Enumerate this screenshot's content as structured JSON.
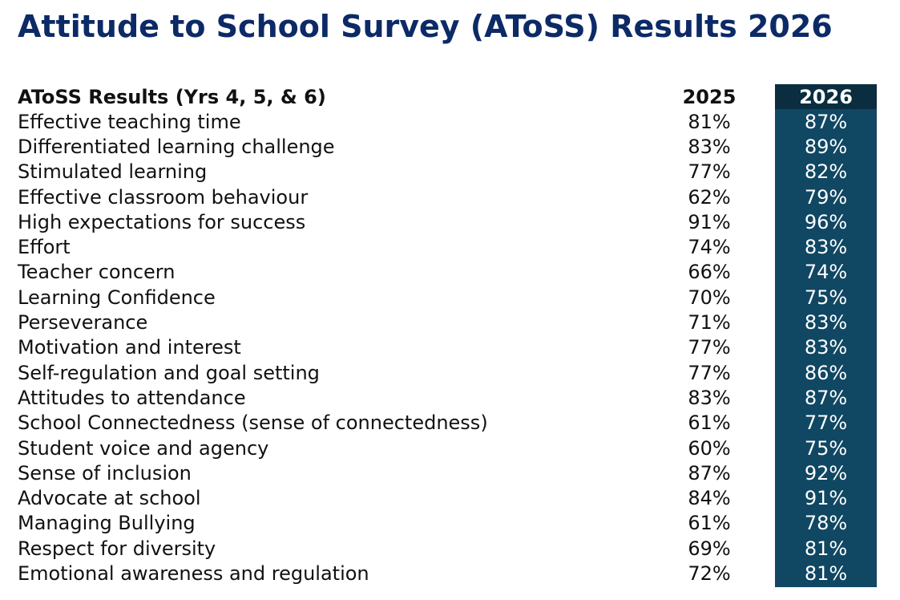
{
  "title": "Attitude to School Survey (AToSS) Results 2026",
  "colors": {
    "title": "#0c2a66",
    "highlight_column": "#104763",
    "highlight_header": "#0a2d40"
  },
  "table": {
    "header": {
      "label": "AToSS Results (Yrs 4, 5, & 6)",
      "col_2025": "2025",
      "col_2026": "2026"
    },
    "rows": [
      {
        "label": "Effective teaching time",
        "y2025": "81%",
        "y2026": "87%"
      },
      {
        "label": "Differentiated learning challenge",
        "y2025": "83%",
        "y2026": "89%"
      },
      {
        "label": "Stimulated learning",
        "y2025": "77%",
        "y2026": "82%"
      },
      {
        "label": "Effective classroom behaviour",
        "y2025": "62%",
        "y2026": "79%"
      },
      {
        "label": "High expectations for success",
        "y2025": "91%",
        "y2026": "96%"
      },
      {
        "label": "Effort",
        "y2025": "74%",
        "y2026": "83%"
      },
      {
        "label": "Teacher concern",
        "y2025": "66%",
        "y2026": "74%"
      },
      {
        "label": "Learning Confidence",
        "y2025": "70%",
        "y2026": "75%"
      },
      {
        "label": "Perseverance",
        "y2025": "71%",
        "y2026": "83%"
      },
      {
        "label": "Motivation and interest",
        "y2025": "77%",
        "y2026": "83%"
      },
      {
        "label": "Self-regulation and goal setting",
        "y2025": "77%",
        "y2026": "86%"
      },
      {
        "label": "Attitudes to attendance",
        "y2025": "83%",
        "y2026": "87%"
      },
      {
        "label": "School Connectedness (sense of connectedness)",
        "y2025": "61%",
        "y2026": "77%"
      },
      {
        "label": "Student voice and agency",
        "y2025": "60%",
        "y2026": "75%"
      },
      {
        "label": "Sense of inclusion",
        "y2025": "87%",
        "y2026": "92%"
      },
      {
        "label": "Advocate at school",
        "y2025": "84%",
        "y2026": "91%"
      },
      {
        "label": "Managing Bullying",
        "y2025": "61%",
        "y2026": "78%"
      },
      {
        "label": "Respect for diversity",
        "y2025": "69%",
        "y2026": "81%"
      },
      {
        "label": "Emotional awareness and regulation",
        "y2025": "72%",
        "y2026": "81%"
      }
    ]
  }
}
